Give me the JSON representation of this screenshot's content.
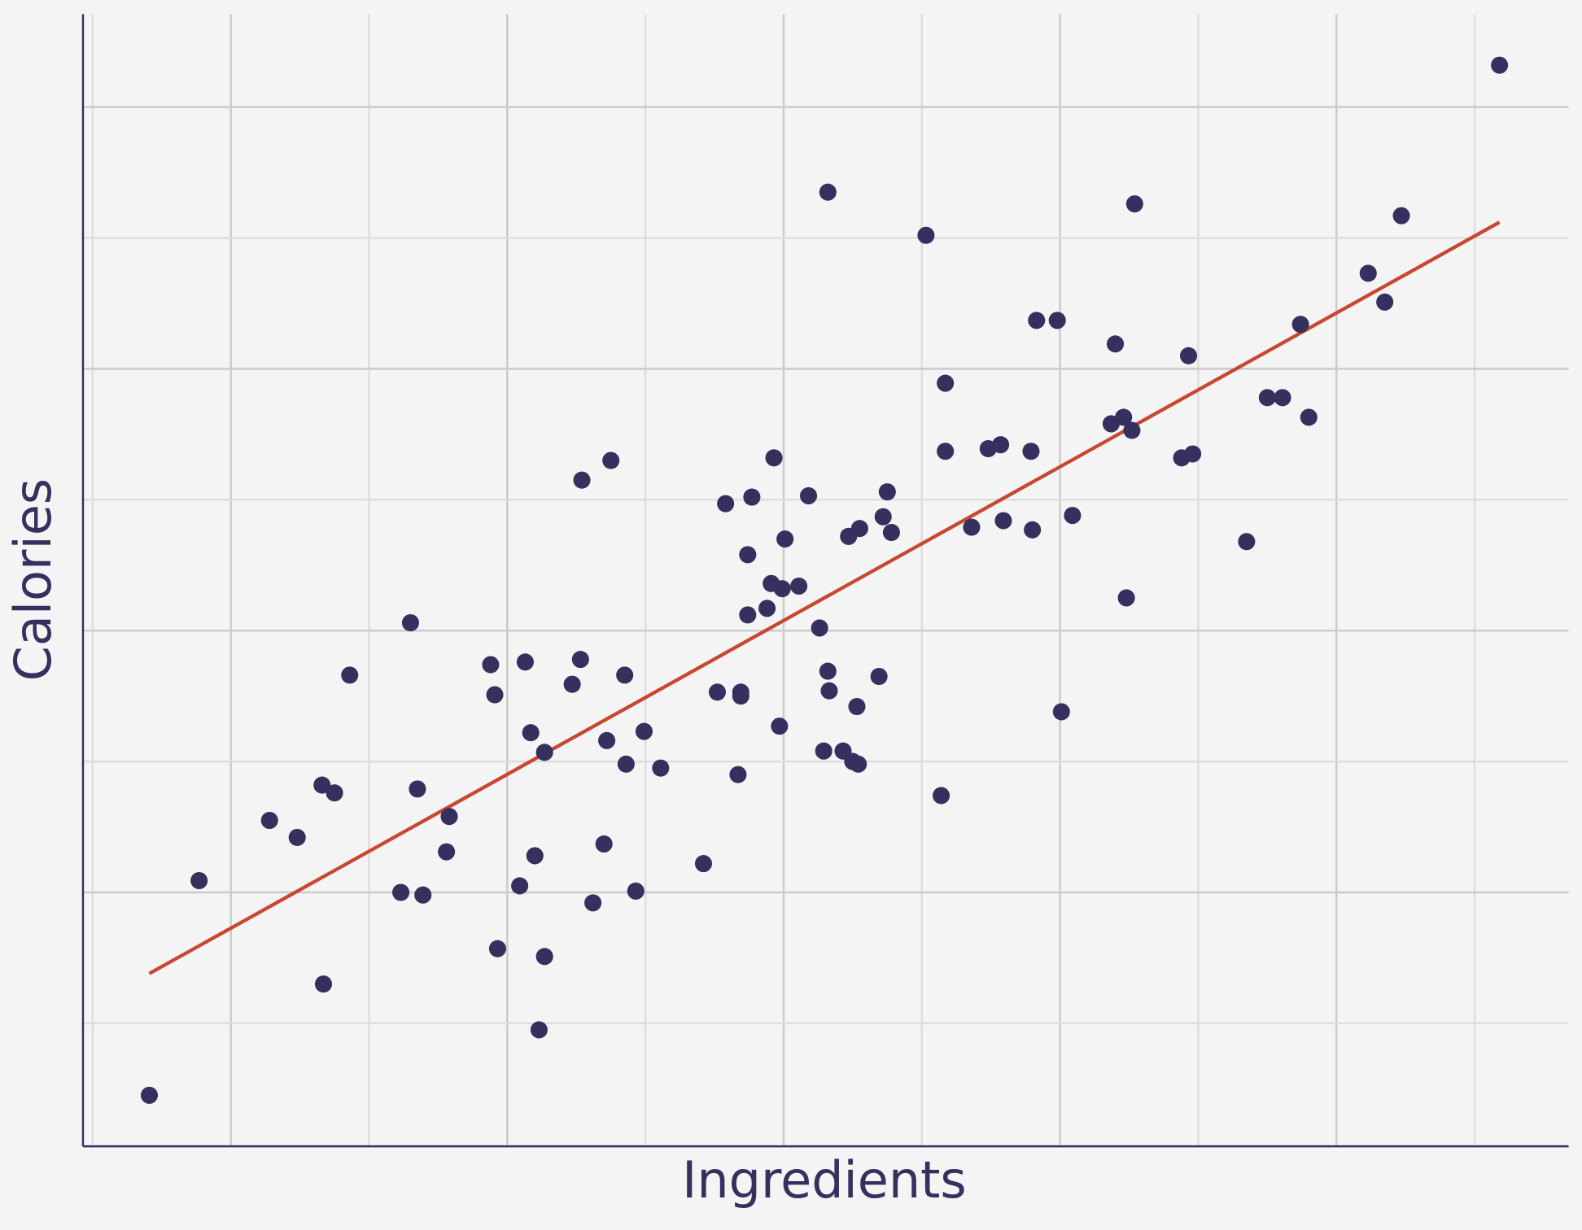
{
  "chart_data": {
    "type": "scatter",
    "x_label": "Ingredients",
    "y_label": "Calories",
    "xlim": [
      -0.07,
      10.68
    ],
    "ylim": [
      0.06,
      8.71
    ],
    "xticks": [
      0,
      1,
      2,
      3,
      4,
      5,
      6,
      7,
      8,
      9,
      10
    ],
    "yticks": [
      1,
      2,
      3,
      4,
      5,
      6,
      7,
      8
    ],
    "grid": true,
    "color": "#35305e",
    "x": [
      0.41,
      0.77,
      1.28,
      1.48,
      1.66,
      1.75,
      1.67,
      1.86,
      2.3,
      2.35,
      2.58,
      2.56,
      2.23,
      2.39,
      2.88,
      2.91,
      2.93,
      3.09,
      3.13,
      3.17,
      3.2,
      3.27,
      3.27,
      3.23,
      3.47,
      3.53,
      3.54,
      3.75,
      3.62,
      3.7,
      3.72,
      3.85,
      3.86,
      3.93,
      3.99,
      4.11,
      4.42,
      4.52,
      4.58,
      4.67,
      4.69,
      4.69,
      4.74,
      4.74,
      4.77,
      4.88,
      4.91,
      4.93,
      4.97,
      4.99,
      5.01,
      5.11,
      5.18,
      5.26,
      5.29,
      5.32,
      5.32,
      5.33,
      5.43,
      5.47,
      5.5,
      5.54,
      5.53,
      5.55,
      5.69,
      5.72,
      5.75,
      5.78,
      6.03,
      6.14,
      6.17,
      6.17,
      6.36,
      6.48,
      6.57,
      6.59,
      6.79,
      6.8,
      6.83,
      6.98,
      7.01,
      7.09,
      7.37,
      7.4,
      7.46,
      7.48,
      7.52,
      7.54,
      7.88,
      7.93,
      7.96,
      8.35,
      8.5,
      8.61,
      8.74,
      8.8,
      9.23,
      9.35,
      9.47,
      10.18
    ],
    "values": [
      0.45,
      2.09,
      2.55,
      2.42,
      2.82,
      2.76,
      1.3,
      3.66,
      4.06,
      2.79,
      2.58,
      2.31,
      2.0,
      1.98,
      3.74,
      3.51,
      1.57,
      2.05,
      3.76,
      3.22,
      2.28,
      3.07,
      1.51,
      0.95,
      3.59,
      3.78,
      5.15,
      5.3,
      1.92,
      2.37,
      3.16,
      3.66,
      2.98,
      2.01,
      3.23,
      2.95,
      2.22,
      3.53,
      4.97,
      2.9,
      3.53,
      3.5,
      4.58,
      4.12,
      5.02,
      4.17,
      4.36,
      5.32,
      3.27,
      4.32,
      4.7,
      4.34,
      5.03,
      4.02,
      3.08,
      7.35,
      3.69,
      3.54,
      3.08,
      4.72,
      3.0,
      2.98,
      3.42,
      4.78,
      3.65,
      4.87,
      5.06,
      4.75,
      7.02,
      2.74,
      5.89,
      5.37,
      4.79,
      5.39,
      5.42,
      4.84,
      5.37,
      4.77,
      6.37,
      6.37,
      3.38,
      4.88,
      5.58,
      6.19,
      5.63,
      4.25,
      5.53,
      7.26,
      5.32,
      6.1,
      5.35,
      4.68,
      5.78,
      5.78,
      6.34,
      5.63,
      6.73,
      6.51,
      7.17,
      8.32
    ],
    "trend_line": {
      "x": [
        0.41,
        10.18
      ],
      "y": [
        1.38,
        7.12
      ],
      "color": "#c8472f"
    }
  }
}
